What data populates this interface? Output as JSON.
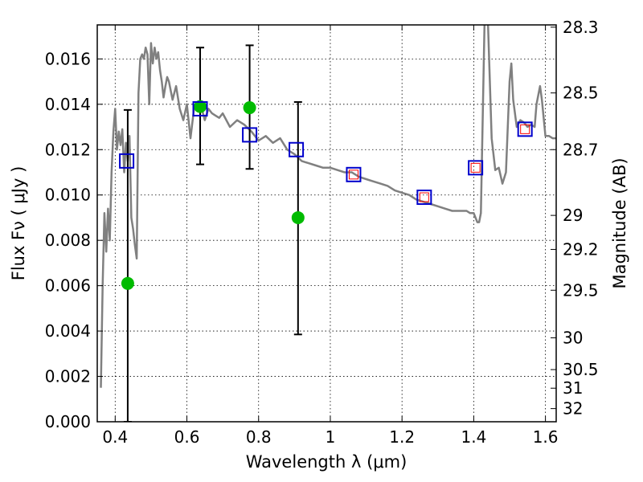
{
  "chart_data": {
    "type": "scatter",
    "xlabel": "Wavelength  λ (μm)",
    "ylabel": "Flux  Fν  ( μJy )",
    "y2label": "Magnitude (AB)",
    "xlim": [
      0.35,
      1.63
    ],
    "ylim": [
      0.0,
      0.0175
    ],
    "grid": true,
    "x_ticks": [
      0.4,
      0.6,
      0.8,
      1.0,
      1.2,
      1.4,
      1.6
    ],
    "x_tick_labels": [
      "0.4",
      "0.6",
      "0.8",
      "1",
      "1.2",
      "1.4",
      "1.6"
    ],
    "y_ticks": [
      0.0,
      0.002,
      0.004,
      0.006,
      0.008,
      0.01,
      0.012,
      0.014,
      0.016
    ],
    "y_tick_labels": [
      "0.000",
      "0.002",
      "0.004",
      "0.006",
      "0.008",
      "0.010",
      "0.012",
      "0.014",
      "0.016"
    ],
    "y2_ticks": [
      {
        "flux": 0.0174,
        "label": "28.3"
      },
      {
        "flux": 0.0145,
        "label": "28.5"
      },
      {
        "flux": 0.012,
        "label": "28.7"
      },
      {
        "flux": 0.0091,
        "label": "29"
      },
      {
        "flux": 0.0076,
        "label": "29.2"
      },
      {
        "flux": 0.0058,
        "label": "29.5"
      },
      {
        "flux": 0.0037,
        "label": "30"
      },
      {
        "flux": 0.0023,
        "label": "30.5"
      },
      {
        "flux": 0.00148,
        "label": "31"
      },
      {
        "flux": 0.00058,
        "label": "32"
      }
    ],
    "series": [
      {
        "kind": "line",
        "color": "#808080",
        "x": [
          0.36,
          0.365,
          0.37,
          0.375,
          0.38,
          0.385,
          0.39,
          0.395,
          0.4,
          0.405,
          0.41,
          0.415,
          0.42,
          0.425,
          0.43,
          0.435,
          0.44,
          0.445,
          0.45,
          0.455,
          0.46,
          0.465,
          0.47,
          0.475,
          0.48,
          0.485,
          0.49,
          0.495,
          0.5,
          0.505,
          0.51,
          0.515,
          0.52,
          0.525,
          0.53,
          0.535,
          0.54,
          0.545,
          0.55,
          0.56,
          0.57,
          0.58,
          0.59,
          0.6,
          0.61,
          0.62,
          0.63,
          0.64,
          0.65,
          0.66,
          0.67,
          0.68,
          0.69,
          0.7,
          0.72,
          0.74,
          0.76,
          0.78,
          0.8,
          0.82,
          0.84,
          0.86,
          0.88,
          0.9,
          0.92,
          0.94,
          0.96,
          0.98,
          1.0,
          1.02,
          1.04,
          1.06,
          1.08,
          1.1,
          1.12,
          1.14,
          1.16,
          1.18,
          1.2,
          1.22,
          1.24,
          1.26,
          1.28,
          1.3,
          1.32,
          1.34,
          1.36,
          1.38,
          1.39,
          1.4,
          1.405,
          1.41,
          1.415,
          1.42,
          1.43,
          1.435,
          1.44,
          1.45,
          1.46,
          1.47,
          1.48,
          1.49,
          1.5,
          1.505,
          1.51,
          1.52,
          1.53,
          1.54,
          1.55,
          1.56,
          1.57,
          1.575,
          1.58,
          1.585,
          1.59,
          1.6,
          1.61,
          1.62,
          1.63
        ],
        "values": [
          0.0015,
          0.006,
          0.0092,
          0.0075,
          0.0094,
          0.008,
          0.011,
          0.0128,
          0.0138,
          0.012,
          0.0128,
          0.0122,
          0.0129,
          0.011,
          0.0123,
          0.0115,
          0.0126,
          0.009,
          0.0085,
          0.0078,
          0.0072,
          0.0145,
          0.016,
          0.0162,
          0.016,
          0.0165,
          0.0162,
          0.014,
          0.0167,
          0.0158,
          0.0165,
          0.016,
          0.0163,
          0.0155,
          0.015,
          0.0143,
          0.0148,
          0.0152,
          0.015,
          0.0142,
          0.0148,
          0.0138,
          0.0133,
          0.014,
          0.0125,
          0.0138,
          0.014,
          0.0139,
          0.0133,
          0.0138,
          0.0136,
          0.0135,
          0.0134,
          0.0136,
          0.013,
          0.0133,
          0.0131,
          0.0128,
          0.0124,
          0.0126,
          0.0123,
          0.0125,
          0.012,
          0.0118,
          0.0115,
          0.0114,
          0.0113,
          0.0112,
          0.0112,
          0.0111,
          0.011,
          0.011,
          0.0108,
          0.0107,
          0.0106,
          0.0105,
          0.0104,
          0.0102,
          0.0101,
          0.01,
          0.0098,
          0.0097,
          0.0096,
          0.0095,
          0.0094,
          0.0093,
          0.0093,
          0.0093,
          0.0092,
          0.0092,
          0.009,
          0.0088,
          0.0088,
          0.0092,
          0.0175,
          0.02,
          0.0175,
          0.0125,
          0.0111,
          0.0112,
          0.0105,
          0.011,
          0.015,
          0.0158,
          0.0142,
          0.013,
          0.0133,
          0.0132,
          0.013,
          0.0131,
          0.013,
          0.014,
          0.0144,
          0.0148,
          0.0142,
          0.0126,
          0.0126,
          0.0125,
          0.0125
        ]
      },
      {
        "kind": "errorbar",
        "color": "#00bb00",
        "marker": "circle",
        "x": [
          0.435,
          0.637,
          0.775,
          0.91
        ],
        "values": [
          0.0061,
          0.0139,
          0.01385,
          0.009
        ],
        "err_low": [
          0.0,
          0.01135,
          0.01115,
          0.00385
        ],
        "err_high": [
          0.01375,
          0.0165,
          0.0166,
          0.0141
        ]
      },
      {
        "kind": "marker",
        "color": "#0000cc",
        "marker": "open-square",
        "x": [
          0.432,
          0.637,
          0.775,
          0.905,
          1.065,
          1.262,
          1.405,
          1.543
        ],
        "values": [
          0.0115,
          0.0138,
          0.01265,
          0.012,
          0.0109,
          0.0099,
          0.0112,
          0.0129
        ]
      },
      {
        "kind": "marker",
        "color": "#ff0000",
        "marker": "small-open-square",
        "x": [
          1.065,
          1.262,
          1.405,
          1.543
        ],
        "values": [
          0.0109,
          0.0099,
          0.0112,
          0.0129
        ]
      }
    ]
  }
}
